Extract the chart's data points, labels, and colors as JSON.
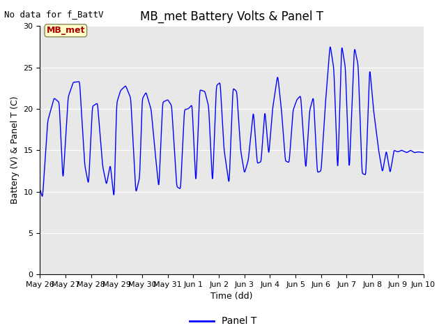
{
  "title": "MB_met Battery Volts & Panel T",
  "no_data_text": "No data for f_BattV",
  "ylabel": "Battery (V) & Panel T (C)",
  "xlabel": "Time (dd)",
  "ylim": [
    0,
    30
  ],
  "yticks": [
    0,
    5,
    10,
    15,
    20,
    25,
    30
  ],
  "legend_label": "Panel T",
  "line_color": "#0000FF",
  "mb_met_label": "MB_met",
  "mb_met_text_color": "#AA0000",
  "mb_met_bg_color": "#FFFFCC",
  "plot_bg_color": "#E8E8E8",
  "title_fontsize": 12,
  "axis_label_fontsize": 9,
  "tick_label_fontsize": 8,
  "xtick_labels": [
    "May 26",
    "May 27",
    "May 28",
    "May 29",
    "May 30",
    "May 31",
    "Jun 1",
    "Jun 2",
    "Jun 3",
    "Jun 4",
    "Jun 5",
    "Jun 6",
    "Jun 7",
    "Jun 8",
    "Jun 9",
    "Jun 10"
  ],
  "xtick_positions": [
    0,
    1,
    2,
    3,
    4,
    5,
    6,
    7,
    8,
    9,
    10,
    11,
    12,
    13,
    14,
    15
  ],
  "key_points_x": [
    0,
    0.1,
    0.3,
    0.55,
    0.75,
    0.9,
    1.1,
    1.3,
    1.55,
    1.75,
    1.9,
    2.05,
    2.25,
    2.45,
    2.6,
    2.75,
    2.9,
    3.0,
    3.15,
    3.35,
    3.55,
    3.75,
    3.9,
    4.0,
    4.15,
    4.35,
    4.5,
    4.65,
    4.8,
    5.0,
    5.15,
    5.35,
    5.5,
    5.65,
    5.8,
    5.95,
    6.1,
    6.25,
    6.45,
    6.6,
    6.75,
    6.9,
    7.05,
    7.2,
    7.4,
    7.55,
    7.7,
    7.85,
    8.0,
    8.15,
    8.35,
    8.5,
    8.65,
    8.8,
    8.95,
    9.1,
    9.3,
    9.45,
    9.6,
    9.75,
    9.9,
    10.05,
    10.2,
    10.4,
    10.55,
    10.7,
    10.85,
    11.0,
    11.15,
    11.35,
    11.5,
    11.65,
    11.8,
    11.95,
    12.1,
    12.3,
    12.45,
    12.6,
    12.75,
    12.9,
    13.05,
    13.25,
    13.4,
    13.55,
    13.7,
    13.85,
    14.0,
    14.15,
    14.35,
    14.5,
    14.65,
    14.8,
    15.0
  ],
  "key_points_y": [
    10.3,
    9.2,
    18.5,
    21.3,
    20.8,
    11.2,
    21.4,
    23.2,
    23.3,
    13.2,
    10.8,
    20.3,
    20.7,
    13.1,
    10.8,
    13.3,
    9.0,
    20.7,
    22.2,
    22.8,
    21.3,
    9.8,
    11.7,
    21.2,
    22.0,
    19.9,
    14.9,
    10.3,
    20.8,
    21.1,
    20.4,
    10.6,
    10.3,
    19.9,
    20.0,
    20.5,
    10.7,
    22.3,
    22.1,
    20.3,
    10.7,
    22.8,
    23.2,
    15.1,
    10.8,
    22.5,
    22.1,
    15.0,
    12.2,
    13.8,
    19.8,
    13.4,
    13.6,
    19.9,
    14.3,
    20.0,
    24.1,
    19.8,
    13.7,
    13.5,
    19.8,
    21.1,
    21.6,
    12.5,
    19.8,
    21.5,
    12.3,
    12.5,
    19.9,
    27.8,
    24.8,
    12.0,
    27.8,
    25.0,
    12.2,
    27.5,
    25.3,
    12.2,
    12.0,
    25.1,
    19.9,
    15.0,
    12.3,
    15.0,
    12.2,
    15.0,
    14.8,
    15.0,
    14.7,
    15.0,
    14.7,
    14.8,
    14.7
  ]
}
